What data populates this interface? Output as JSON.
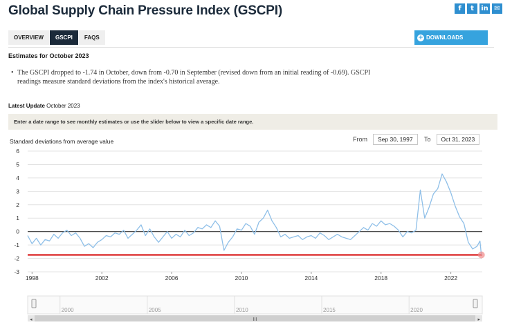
{
  "page": {
    "title": "Global Supply Chain Pressure Index (GSCPI)",
    "social_icons": [
      "facebook-icon",
      "twitter-icon",
      "linkedin-icon",
      "email-icon"
    ]
  },
  "tabs": [
    {
      "label": "OVERVIEW",
      "active": false
    },
    {
      "label": "GSCPI",
      "active": true
    },
    {
      "label": "FAQS",
      "active": false
    }
  ],
  "downloads_label": "DOWNLOADS",
  "estimates_heading": "Estimates for October 2023",
  "bullet_text": "The GSCPI dropped to -1.74 in October, down from -0.70 in September (revised down from an initial reading of -0.69). GSCPI readings measure standard deviations from the index's historical average.",
  "latest_update": {
    "label": "Latest Update",
    "value": "October 2023"
  },
  "info_bar": "Enter a date range to see monthly estimates or use the slider below to view a specific date range.",
  "range": {
    "from_label": "From",
    "from_value": "Sep 30, 1997",
    "to_label": "To",
    "to_value": "Oct 31, 2023"
  },
  "colors": {
    "series": "#8ebfe8",
    "zero_line": "#333333",
    "threshold": "#d92020",
    "marker": "#ef8a8a",
    "accent": "#36a3de",
    "active_tab": "#1b2a3a"
  },
  "chart_data": {
    "type": "line",
    "ylabel": "Standard deviations from average value",
    "ylim": [
      -3,
      6
    ],
    "yticks": [
      -3,
      -2,
      -1,
      0,
      1,
      2,
      3,
      4,
      5,
      6
    ],
    "xlim": [
      1997.75,
      2023.8
    ],
    "xticks": [
      "1998",
      "2002",
      "2006",
      "2010",
      "2014",
      "2018",
      "2022"
    ],
    "grid": true,
    "reference_lines": [
      {
        "value": 0,
        "color": "#333333"
      },
      {
        "value": -1.74,
        "color": "#d92020"
      }
    ],
    "last_point": {
      "x": "Oct 2023",
      "y": -1.74
    },
    "series": [
      {
        "x": [
          1997.75,
          1998.0,
          1998.25,
          1998.5,
          1998.75,
          1999.0,
          1999.25,
          1999.5,
          1999.75,
          2000.0,
          2000.25,
          2000.5,
          2000.75,
          2001.0,
          2001.25,
          2001.5,
          2001.75,
          2002.0,
          2002.25,
          2002.5,
          2002.75,
          2003.0,
          2003.25,
          2003.5,
          2003.75,
          2004.0,
          2004.25,
          2004.5,
          2004.75,
          2005.0,
          2005.25,
          2005.5,
          2005.75,
          2006.0,
          2006.25,
          2006.5,
          2006.75,
          2007.0,
          2007.25,
          2007.5,
          2007.75,
          2008.0,
          2008.25,
          2008.5,
          2008.75,
          2009.0,
          2009.25,
          2009.5,
          2009.75,
          2010.0,
          2010.25,
          2010.5,
          2010.75,
          2011.0,
          2011.25,
          2011.5,
          2011.75,
          2012.0,
          2012.25,
          2012.5,
          2012.75,
          2013.0,
          2013.25,
          2013.5,
          2013.75,
          2014.0,
          2014.25,
          2014.5,
          2014.75,
          2015.0,
          2015.25,
          2015.5,
          2015.75,
          2016.0,
          2016.25,
          2016.5,
          2016.75,
          2017.0,
          2017.25,
          2017.5,
          2017.75,
          2018.0,
          2018.25,
          2018.5,
          2018.75,
          2019.0,
          2019.25,
          2019.5,
          2019.75,
          2020.0,
          2020.25,
          2020.5,
          2020.75,
          2021.0,
          2021.25,
          2021.5,
          2021.75,
          2022.0,
          2022.25,
          2022.5,
          2022.75,
          2023.0,
          2023.25,
          2023.5,
          2023.67,
          2023.75
        ],
        "y": [
          -0.3,
          -0.9,
          -0.5,
          -1.0,
          -0.6,
          -0.7,
          -0.2,
          -0.5,
          -0.1,
          0.1,
          -0.3,
          -0.1,
          -0.5,
          -1.1,
          -0.9,
          -1.2,
          -0.8,
          -0.6,
          -0.3,
          -0.4,
          -0.1,
          -0.2,
          0.1,
          -0.5,
          -0.2,
          0.1,
          0.5,
          -0.3,
          0.2,
          -0.4,
          -0.8,
          -0.4,
          0.0,
          -0.5,
          -0.2,
          -0.4,
          0.1,
          -0.3,
          -0.1,
          0.3,
          0.2,
          0.5,
          0.3,
          0.8,
          0.4,
          -1.4,
          -0.8,
          -0.4,
          0.2,
          0.1,
          0.6,
          0.4,
          -0.2,
          0.7,
          1.0,
          1.6,
          0.8,
          0.3,
          -0.4,
          -0.2,
          -0.5,
          -0.4,
          -0.3,
          -0.6,
          -0.4,
          -0.3,
          -0.5,
          -0.1,
          -0.3,
          -0.6,
          -0.4,
          -0.2,
          -0.4,
          -0.5,
          -0.6,
          -0.3,
          0.0,
          0.3,
          0.1,
          0.6,
          0.4,
          0.8,
          0.5,
          0.6,
          0.4,
          0.1,
          -0.4,
          0.0,
          -0.1,
          0.1,
          3.1,
          1.0,
          1.8,
          2.8,
          3.2,
          4.3,
          3.7,
          2.9,
          1.9,
          1.1,
          0.6,
          -0.8,
          -1.3,
          -1.1,
          -0.7,
          -1.74
        ]
      }
    ]
  },
  "navigator": {
    "labels": [
      "2000",
      "2005",
      "2010",
      "2015",
      "2020"
    ],
    "scrollbar_grip": "III"
  }
}
